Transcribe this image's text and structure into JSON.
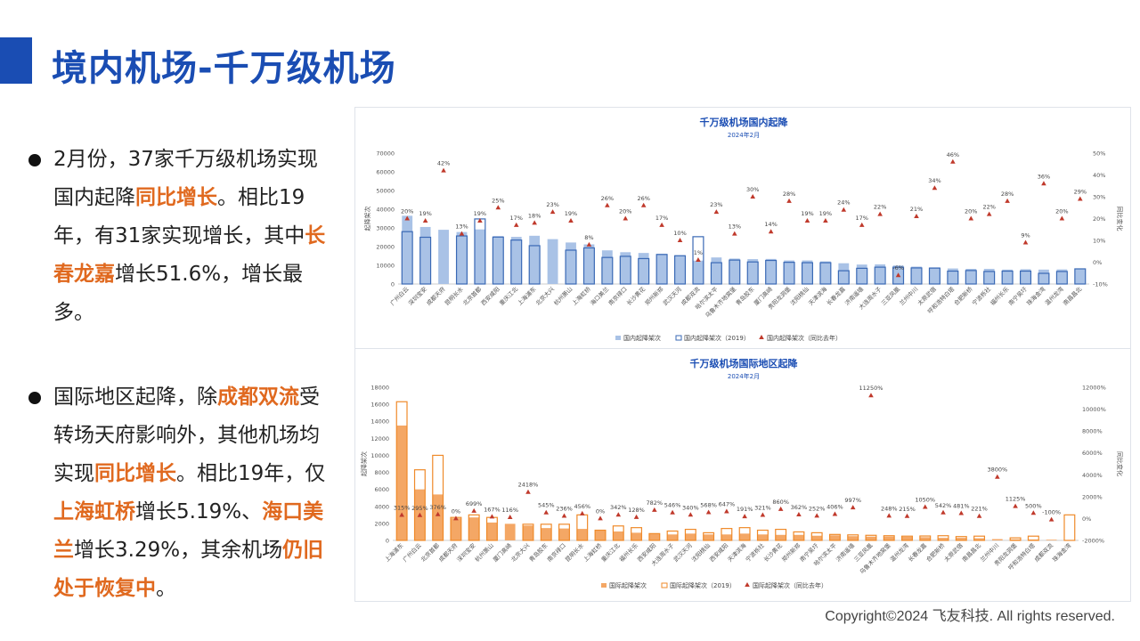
{
  "header": {
    "title": "境内机场-千万级机场"
  },
  "bullets": [
    {
      "segments": [
        {
          "text": "2月份，37家千万级机场实现国内起降",
          "hl": false
        },
        {
          "text": "同比增长",
          "hl": true
        },
        {
          "text": "。相比19年，有31家实现增长，其中",
          "hl": false
        },
        {
          "text": "长春龙嘉",
          "hl": true
        },
        {
          "text": "增长51.6%，增长最多。",
          "hl": false
        }
      ]
    },
    {
      "segments": [
        {
          "text": "国际地区起降，除",
          "hl": false
        },
        {
          "text": "成都双流",
          "hl": true
        },
        {
          "text": "受转场天府影响外，其他机场均实现",
          "hl": false
        },
        {
          "text": "同比增长",
          "hl": true
        },
        {
          "text": "。相比19年，仅",
          "hl": false
        },
        {
          "text": "上海虹桥",
          "hl": true
        },
        {
          "text": "增长5.19%、",
          "hl": false
        },
        {
          "text": "海口美兰",
          "hl": true
        },
        {
          "text": "增长3.29%，其余机场",
          "hl": false
        },
        {
          "text": "仍旧处于恢复中",
          "hl": true
        },
        {
          "text": "。",
          "hl": false
        }
      ]
    }
  ],
  "colors": {
    "title_blue": "#1a4db3",
    "highlight": "#e0691f",
    "domestic_bar": "#a9c2e6",
    "domestic_outline": "#3a69b5",
    "intl_bar": "#f4a765",
    "intl_outline": "#ef8a2a",
    "marker": "#c0392b"
  },
  "chart_data": [
    {
      "type": "bar",
      "title": "千万级机场国内起降",
      "subtitle": "2024年2月",
      "ylabel": "起降架次",
      "y2label": "同比变化",
      "ylim": [
        0,
        70000
      ],
      "yticks": [
        0,
        10000,
        20000,
        30000,
        40000,
        50000,
        60000,
        70000
      ],
      "y2lim": [
        -10,
        50
      ],
      "y2ticks": [
        -10,
        0,
        10,
        20,
        30,
        40,
        50
      ],
      "y2_suffix": "%",
      "categories": [
        "广州白云",
        "深圳宝安",
        "成都天府",
        "昆明长水",
        "北京首都",
        "西安咸阳",
        "重庆江北",
        "上海浦东",
        "北京大兴",
        "杭州萧山",
        "上海虹桥",
        "海口美兰",
        "南京禄口",
        "长沙黄花",
        "郑州新郑",
        "武汉天河",
        "成都双流",
        "哈尔滨太平",
        "乌鲁木齐地窝堡",
        "青岛胶东",
        "厦门高崎",
        "贵阳龙洞堡",
        "沈阳桃仙",
        "天津滨海",
        "长春龙嘉",
        "济南遥墙",
        "大连周水子",
        "三亚凤凰",
        "兰州中川",
        "太原武宿",
        "呼和浩特白塔",
        "合肥新桥",
        "宁波栎社",
        "福州长乐",
        "南宁吴圩",
        "珠海金湾",
        "温州龙湾",
        "南昌昌北"
      ],
      "series": [
        {
          "name": "国内起降架次",
          "kind": "bar",
          "values": [
            36500,
            30500,
            29000,
            27800,
            29200,
            25600,
            25200,
            25800,
            24000,
            22200,
            21200,
            18000,
            17000,
            16600,
            16100,
            15400,
            12500,
            14200,
            13600,
            13300,
            13400,
            12600,
            12600,
            12100,
            11100,
            10400,
            10500,
            9900,
            9300,
            8900,
            8300,
            8100,
            8100,
            7700,
            7900,
            7700,
            7800,
            8300
          ]
        },
        {
          "name": "国内起降架次（2019）",
          "kind": "outline",
          "values": [
            28000,
            25000,
            null,
            25700,
            34800,
            25100,
            23500,
            20500,
            null,
            18100,
            19300,
            14200,
            14800,
            13600,
            15800,
            15100,
            25300,
            11400,
            12800,
            11800,
            12600,
            11600,
            11400,
            11400,
            7100,
            8400,
            9000,
            9000,
            8600,
            8500,
            6900,
            7200,
            6700,
            6900,
            6900,
            5700,
            6700,
            8100
          ]
        },
        {
          "name": "国内起降架次（同比去年）",
          "kind": "marker",
          "values": [
            20,
            19,
            42,
            13,
            19,
            25,
            17,
            18,
            23,
            19,
            8,
            26,
            20,
            26,
            17,
            10,
            1,
            23,
            13,
            30,
            14,
            28,
            19,
            19,
            24,
            17,
            22,
            -6,
            21,
            34,
            46,
            20,
            22,
            28,
            9,
            36,
            20,
            29
          ],
          "labels": [
            "20%",
            "19%",
            "42%",
            "13%",
            "19%",
            "25%",
            "17%",
            "18%",
            "23%",
            "19%",
            "8%",
            "26%",
            "20%",
            "26%",
            "17%",
            "10%",
            "1%",
            "23%",
            "13%",
            "30%",
            "14%",
            "28%",
            "19%",
            "19%",
            "24%",
            "17%",
            "22%",
            "-6%",
            "21%",
            "34%",
            "46%",
            "20%",
            "22%",
            "28%",
            "9%",
            "36%",
            "20%",
            "29%"
          ]
        }
      ],
      "legend": [
        "国内起降架次",
        "国内起降架次（2019）",
        "国内起降架次（同比去年）"
      ],
      "legend_position": "bottom"
    },
    {
      "type": "bar",
      "title": "千万级机场国际地区起降",
      "subtitle": "2024年2月",
      "ylabel": "起降架次",
      "y2label": "同比变化",
      "ylim": [
        0,
        18000
      ],
      "yticks": [
        0,
        2000,
        4000,
        6000,
        8000,
        10000,
        12000,
        14000,
        16000,
        18000
      ],
      "y2lim": [
        -2000,
        12000
      ],
      "y2ticks": [
        -2000,
        0,
        2000,
        4000,
        6000,
        8000,
        10000,
        12000
      ],
      "y2_suffix": "%",
      "categories": [
        "上海浦东",
        "广州白云",
        "北京首都",
        "成都天府",
        "深圳宝安",
        "杭州萧山",
        "厦门高崎",
        "北京大兴",
        "青岛胶东",
        "南京禄口",
        "昆明长水",
        "上海虹桥",
        "重庆江北",
        "福州长乐",
        "西安咸阳",
        "大连周水子",
        "武汉天河",
        "沈阳桃仙",
        "西安咸阳",
        "天津滨海",
        "宁波栎社",
        "长沙黄花",
        "郑州新郑",
        "南宁吴圩",
        "哈尔滨太平",
        "济南遥墙",
        "三亚凤凰",
        "乌鲁木齐地窝堡",
        "温州龙湾",
        "长春龙嘉",
        "合肥新桥",
        "太原武宿",
        "南昌昌北",
        "兰州中川",
        "贵阳龙洞堡",
        "呼和浩特白塔",
        "成都双流",
        "珠海金湾"
      ],
      "series": [
        {
          "name": "国际起降架次",
          "kind": "bar",
          "values": [
            13500,
            6000,
            5400,
            2600,
            2700,
            2100,
            1950,
            1750,
            1450,
            1400,
            1350,
            1200,
            1050,
            900,
            750,
            700,
            800,
            700,
            700,
            800,
            700,
            650,
            650,
            550,
            600,
            500,
            450,
            450,
            420,
            380,
            300,
            300,
            250,
            150,
            130,
            110,
            80,
            50
          ]
        },
        {
          "name": "国际起降架次（2019）",
          "kind": "outline",
          "values": [
            16300,
            8300,
            10000,
            2700,
            3000,
            2700,
            null,
            1900,
            1900,
            1900,
            3000,
            1200,
            1700,
            1500,
            800,
            1100,
            1300,
            900,
            1400,
            1500,
            1200,
            1300,
            1000,
            900,
            700,
            650,
            600,
            550,
            500,
            520,
            550,
            450,
            500,
            null,
            300,
            500,
            null,
            3000
          ]
        },
        {
          "name": "国际起降架次（同比去年）",
          "kind": "marker",
          "values": [
            315,
            295,
            376,
            0,
            699,
            167,
            116,
            2418,
            545,
            236,
            456,
            0,
            342,
            128,
            782,
            546,
            340,
            568,
            647,
            191,
            321,
            860,
            362,
            252,
            406,
            997,
            11250,
            248,
            215,
            1050,
            542,
            481,
            221,
            3800,
            1125,
            500,
            -100,
            null
          ],
          "labels": [
            "315%",
            "295%",
            "376%",
            "0%",
            "699%",
            "167%",
            "116%",
            "2418%",
            "545%",
            "236%",
            "456%",
            "0%",
            "342%",
            "128%",
            "782%",
            "546%",
            "340%",
            "568%",
            "647%",
            "191%",
            "321%",
            "860%",
            "362%",
            "252%",
            "406%",
            "997%",
            "11250%",
            "248%",
            "215%",
            "1050%",
            "542%",
            "481%",
            "221%",
            "3800%",
            "1125%",
            "500%",
            "-100%",
            ""
          ]
        }
      ],
      "legend": [
        "国际起降架次",
        "国际起降架次（2019）",
        "国际起降架次（同比去年）"
      ],
      "legend_position": "bottom"
    }
  ],
  "footer": {
    "copyright": "Copyright©2024 飞友科技. All rights reserved."
  }
}
